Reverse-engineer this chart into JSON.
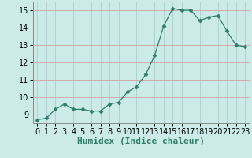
{
  "x": [
    0,
    1,
    2,
    3,
    4,
    5,
    6,
    7,
    8,
    9,
    10,
    11,
    12,
    13,
    14,
    15,
    16,
    17,
    18,
    19,
    20,
    21,
    22,
    23
  ],
  "y": [
    8.7,
    8.8,
    9.3,
    9.6,
    9.3,
    9.3,
    9.2,
    9.2,
    9.6,
    9.7,
    10.3,
    10.6,
    11.3,
    12.4,
    14.1,
    15.1,
    15.0,
    15.0,
    14.4,
    14.6,
    14.7,
    13.8,
    13.0,
    12.9
  ],
  "line_color": "#2e7d6e",
  "marker": "D",
  "marker_size": 2.5,
  "bg_color": "#cceae7",
  "grid_color_major": "#d9a0a0",
  "grid_color_minor": "#c8dede",
  "xlabel": "Humidex (Indice chaleur)",
  "xlim": [
    -0.5,
    23.5
  ],
  "ylim": [
    8.5,
    15.5
  ],
  "yticks": [
    9,
    10,
    11,
    12,
    13,
    14,
    15
  ],
  "xticks": [
    0,
    1,
    2,
    3,
    4,
    5,
    6,
    7,
    8,
    9,
    10,
    11,
    12,
    13,
    14,
    15,
    16,
    17,
    18,
    19,
    20,
    21,
    22,
    23
  ],
  "tick_fontsize": 7,
  "xlabel_fontsize": 8
}
